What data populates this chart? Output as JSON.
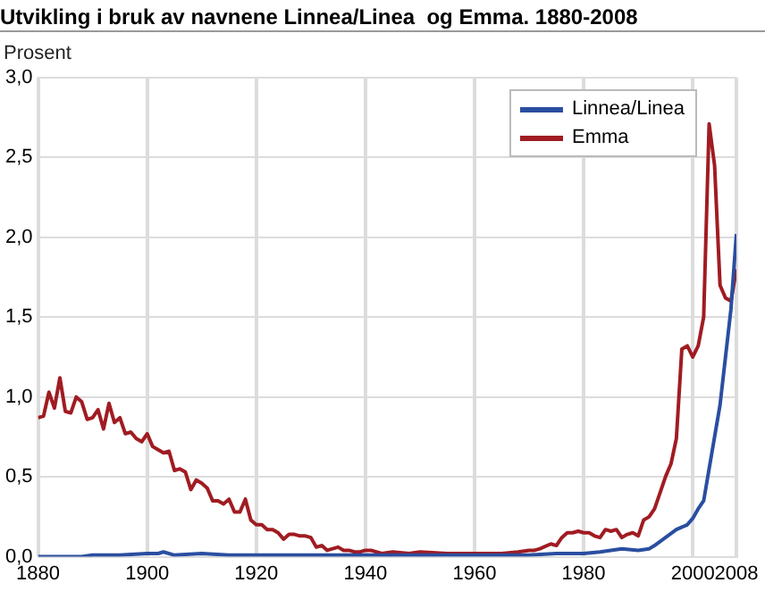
{
  "chart_data": {
    "type": "line",
    "title": "Utvikling i bruk av navnene Linnea/Linea  og Emma. 1880-2008",
    "ylabel": "Prosent",
    "xlim": [
      1880,
      2008
    ],
    "xticks": [
      1880,
      1900,
      1920,
      1940,
      1960,
      1980,
      2000,
      2008
    ],
    "ylim": [
      0,
      3
    ],
    "yticks": [
      {
        "value": 0,
        "label": "0,0"
      },
      {
        "value": 0.5,
        "label": "0,5"
      },
      {
        "value": 1,
        "label": "1,0"
      },
      {
        "value": 1.5,
        "label": "1,5"
      },
      {
        "value": 2,
        "label": "2,0"
      },
      {
        "value": 2.5,
        "label": "2,5"
      },
      {
        "value": 3,
        "label": "3,0"
      }
    ],
    "grid": true,
    "legend": "top right",
    "marker": "none",
    "line_style": "solid",
    "series": [
      {
        "name": "Linnea/Linea",
        "color": "#2a4ea0",
        "x": [
          1880,
          1888,
          1890,
          1895,
          1900,
          1902,
          1903,
          1905,
          1910,
          1915,
          1920,
          1925,
          1930,
          1940,
          1950,
          1960,
          1970,
          1975,
          1980,
          1983,
          1985,
          1987,
          1990,
          1992,
          1993,
          1995,
          1997,
          1999,
          2000,
          2001,
          2002,
          2003,
          2004,
          2005,
          2006,
          2007,
          2008
        ],
        "values": [
          0,
          0,
          0.01,
          0.01,
          0.02,
          0.02,
          0.03,
          0.01,
          0.02,
          0.01,
          0.01,
          0.01,
          0.01,
          0.01,
          0.01,
          0.01,
          0.01,
          0.02,
          0.02,
          0.03,
          0.04,
          0.05,
          0.04,
          0.05,
          0.07,
          0.12,
          0.17,
          0.2,
          0.24,
          0.3,
          0.35,
          0.55,
          0.75,
          0.95,
          1.25,
          1.55,
          2.02
        ]
      },
      {
        "name": "Emma",
        "color": "#a01c22",
        "x": [
          1880,
          1881,
          1882,
          1883,
          1884,
          1885,
          1886,
          1887,
          1888,
          1889,
          1890,
          1891,
          1892,
          1893,
          1894,
          1895,
          1896,
          1897,
          1898,
          1899,
          1900,
          1901,
          1902,
          1903,
          1904,
          1905,
          1906,
          1907,
          1908,
          1909,
          1910,
          1911,
          1912,
          1913,
          1914,
          1915,
          1916,
          1917,
          1918,
          1919,
          1920,
          1921,
          1922,
          1923,
          1924,
          1925,
          1926,
          1927,
          1928,
          1929,
          1930,
          1931,
          1932,
          1933,
          1934,
          1935,
          1936,
          1937,
          1938,
          1939,
          1940,
          1941,
          1942,
          1943,
          1945,
          1948,
          1950,
          1955,
          1960,
          1965,
          1968,
          1970,
          1971,
          1972,
          1974,
          1975,
          1976,
          1977,
          1978,
          1979,
          1980,
          1981,
          1982,
          1983,
          1984,
          1985,
          1986,
          1987,
          1988,
          1989,
          1990,
          1991,
          1992,
          1993,
          1994,
          1995,
          1996,
          1997,
          1998,
          1999,
          2000,
          2001,
          2002,
          2003,
          2004,
          2005,
          2006,
          2007,
          2008
        ],
        "values": [
          0.87,
          0.88,
          1.03,
          0.93,
          1.12,
          0.91,
          0.9,
          1.0,
          0.97,
          0.86,
          0.87,
          0.92,
          0.8,
          0.96,
          0.84,
          0.87,
          0.77,
          0.78,
          0.74,
          0.72,
          0.77,
          0.69,
          0.67,
          0.65,
          0.66,
          0.54,
          0.55,
          0.53,
          0.42,
          0.48,
          0.46,
          0.43,
          0.35,
          0.35,
          0.33,
          0.36,
          0.28,
          0.28,
          0.36,
          0.23,
          0.2,
          0.2,
          0.17,
          0.17,
          0.15,
          0.11,
          0.14,
          0.14,
          0.13,
          0.13,
          0.12,
          0.06,
          0.07,
          0.04,
          0.05,
          0.06,
          0.04,
          0.04,
          0.03,
          0.03,
          0.04,
          0.04,
          0.03,
          0.02,
          0.03,
          0.02,
          0.03,
          0.02,
          0.02,
          0.02,
          0.03,
          0.04,
          0.04,
          0.05,
          0.08,
          0.07,
          0.12,
          0.15,
          0.15,
          0.16,
          0.15,
          0.15,
          0.13,
          0.12,
          0.17,
          0.16,
          0.17,
          0.12,
          0.14,
          0.15,
          0.13,
          0.23,
          0.25,
          0.3,
          0.4,
          0.5,
          0.58,
          0.74,
          1.3,
          1.32,
          1.25,
          1.32,
          1.5,
          2.71,
          2.45,
          1.7,
          1.62,
          1.6,
          1.8
        ]
      }
    ]
  }
}
